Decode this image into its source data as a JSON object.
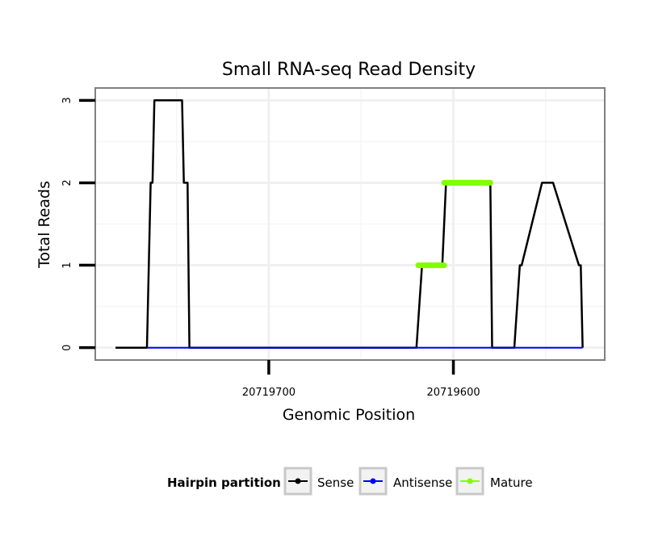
{
  "chart_data": {
    "type": "line",
    "title": "Small RNA-seq Read Density",
    "xlabel": "Genomic Position",
    "ylabel": "Total Reads",
    "x_reversed": true,
    "xlim": [
      20719794,
      20719518
    ],
    "ylim": [
      -0.15,
      3.15
    ],
    "x_ticks": [
      20719700,
      20719600
    ],
    "x_tick_labels": [
      "20719700",
      "20719600"
    ],
    "y_ticks": [
      0,
      1,
      2,
      3
    ],
    "y_tick_labels": [
      "0",
      "1",
      "2",
      "3"
    ],
    "grid": true,
    "legend": {
      "title": "Hairpin partition",
      "placement": "bottom",
      "entries": [
        {
          "name": "Sense",
          "color": "#000000"
        },
        {
          "name": "Antisense",
          "color": "#0000ff"
        },
        {
          "name": "Mature",
          "color": "#7fff00"
        }
      ]
    },
    "series": [
      {
        "name": "Sense",
        "color": "#000000",
        "x": [
          20719783,
          20719766,
          20719764,
          20719763,
          20719762,
          20719747,
          20719746,
          20719744,
          20719743,
          20719620,
          20719617,
          20719616,
          20719606,
          20719604,
          20719603,
          20719596,
          20719580,
          20719579,
          20719567,
          20719564,
          20719563,
          20719552,
          20719550,
          20719549,
          20719548,
          20719546,
          20719532,
          20719531,
          20719530
        ],
        "values": [
          0,
          0,
          2,
          2,
          3,
          3,
          2,
          2,
          0,
          0,
          1,
          1,
          1,
          2,
          2,
          2,
          2,
          0,
          0,
          1,
          1,
          2,
          2,
          2,
          2,
          2,
          1,
          1,
          0
        ]
      },
      {
        "name": "Antisense",
        "color": "#0000ff",
        "x": [
          20719766,
          20719530
        ],
        "values": [
          0,
          0
        ]
      },
      {
        "name": "Mature",
        "color": "#7fff00",
        "segments": [
          {
            "x": [
              20719619,
              20719605
            ],
            "values": [
              1,
              1
            ]
          },
          {
            "x": [
              20719605,
              20719580
            ],
            "values": [
              2,
              2
            ]
          }
        ]
      }
    ]
  }
}
